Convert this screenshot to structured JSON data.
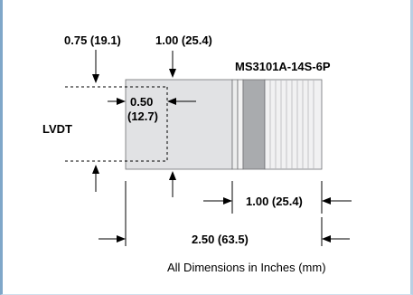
{
  "labels": {
    "dim_top_left": "0.75 (19.1)",
    "dim_top_center": "1.00 (25.4)",
    "connector": "MS3101A-14S-6P",
    "dim_inner_1": "0.50",
    "dim_inner_2": "(12.7)",
    "lvdt": "LVDT",
    "dim_connector_len": "1.00 (25.4)",
    "dim_total_len": "2.50 (63.5)",
    "caption": "All Dimensions in Inches (mm)"
  },
  "colors": {
    "body_fill": "#e1e2e4",
    "band_fill": "#a9abae",
    "frame_left": "#7fa7c9",
    "line": "#000000"
  }
}
